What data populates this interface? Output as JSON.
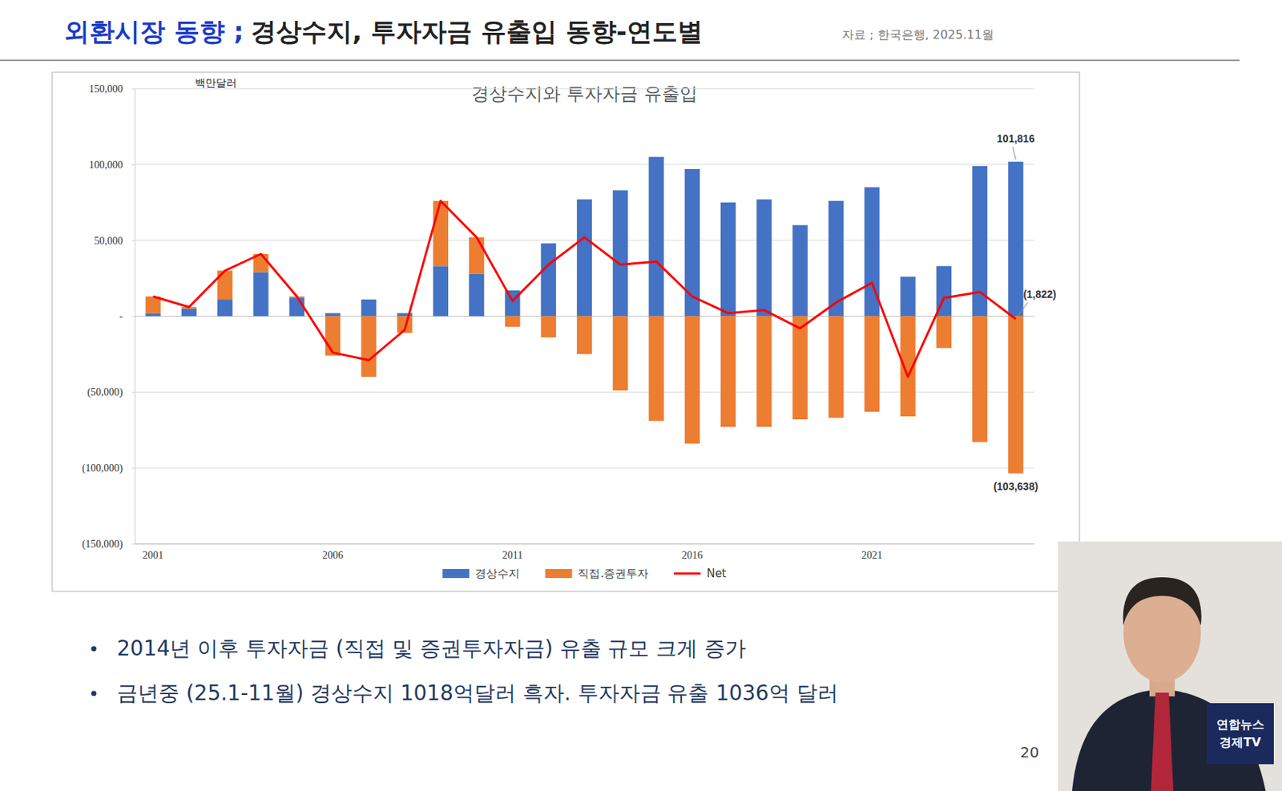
{
  "slide": {
    "title_main": "외환시장 동향 ;",
    "title_sub": "경상수지, 투자자금 유출입 동향-연도별",
    "source": "자료 ; 한국은행, 2025.11월",
    "bullets": [
      "2014년 이후 투자자금 (직접 및 증권투자자금) 유출 규모 크게 증가",
      "금년중 (25.1-11월) 경상수지 1018억달러 흑자. 투자자금 유출 1036억 달러"
    ],
    "page": "20",
    "broadcaster": [
      "연합뉴스",
      "경제TV"
    ]
  },
  "chart_data": {
    "type": "bar",
    "title": "경상수지와 투자자금 유출입",
    "y_label": "백만달러",
    "stacked": true,
    "grid": true,
    "legend": "bottom",
    "categories": [
      "2001",
      null,
      null,
      null,
      null,
      "2006",
      null,
      null,
      null,
      null,
      "2011",
      null,
      null,
      null,
      null,
      "2016",
      null,
      null,
      null,
      null,
      "2021",
      null,
      null,
      null,
      null
    ],
    "series": [
      {
        "name": "경상수지",
        "color": "#4472c4",
        "values": [
          2000,
          5000,
          11000,
          29000,
          12000,
          2000,
          11000,
          2000,
          33000,
          28000,
          17000,
          48000,
          77000,
          83000,
          105000,
          97000,
          75000,
          77000,
          60000,
          76000,
          85000,
          26000,
          33000,
          99000,
          101816
        ]
      },
      {
        "name": "직접.증권투자",
        "color": "#ed7d31",
        "values": [
          11000,
          1000,
          19000,
          12000,
          1000,
          -26000,
          -40000,
          -11000,
          43000,
          24000,
          -7000,
          -14000,
          -25000,
          -49000,
          -69000,
          -84000,
          -73000,
          -73000,
          -68000,
          -67000,
          -63000,
          -66000,
          -21000,
          -83000,
          -103638
        ]
      },
      {
        "name": "Net",
        "type": "line",
        "color": "#ff0000",
        "values": [
          13000,
          6000,
          30000,
          41000,
          13000,
          -24000,
          -29000,
          -9000,
          76000,
          52000,
          10000,
          34000,
          52000,
          34000,
          36000,
          13000,
          2000,
          4000,
          -8000,
          9000,
          22000,
          -40000,
          12000,
          16000,
          -1822
        ]
      }
    ],
    "ylim": [
      -150000,
      150000
    ],
    "yticks": [
      {
        "value": -150000,
        "label": "(150,000)"
      },
      {
        "value": -100000,
        "label": "(100,000)"
      },
      {
        "value": -50000,
        "label": "(50,000)"
      },
      {
        "value": 0,
        "label": "-"
      },
      {
        "value": 50000,
        "label": "50,000"
      },
      {
        "value": 100000,
        "label": "100,000"
      },
      {
        "value": 150000,
        "label": "150,000"
      }
    ],
    "annotations": [
      {
        "text": "101,816",
        "series": 0,
        "index": 24
      },
      {
        "text": "(1,822)",
        "series": 2,
        "index": 24
      },
      {
        "text": "(103,638)",
        "series": 1,
        "index": 24
      }
    ]
  }
}
